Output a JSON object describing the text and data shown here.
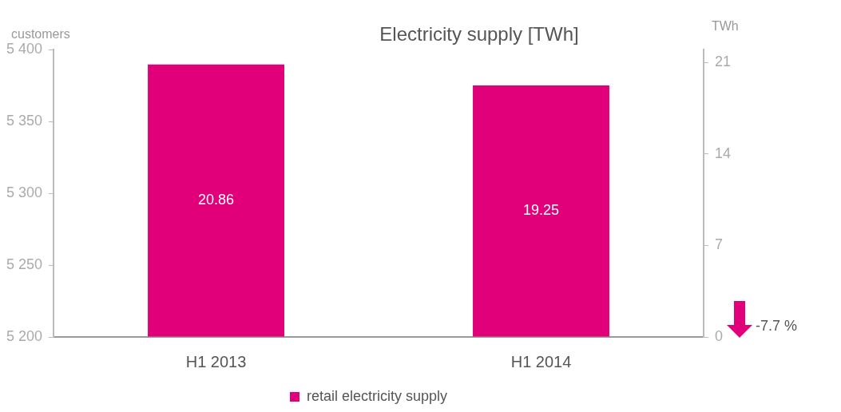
{
  "chart_data": {
    "type": "bar",
    "title": "Electricity supply [TWh]",
    "ylabel": "customers",
    "y2label": "TWh",
    "categories": [
      "H1 2013",
      "H1 2014"
    ],
    "series": [
      {
        "name": "retail electricity supply",
        "color": "#e2007a",
        "values": [
          20.86,
          19.25
        ],
        "axis": "y2"
      }
    ],
    "ylim": [
      5200,
      5400
    ],
    "yticks": [
      {
        "value": 5200,
        "label": "5 200"
      },
      {
        "value": 5250,
        "label": "5 250"
      },
      {
        "value": 5300,
        "label": "5 300"
      },
      {
        "value": 5350,
        "label": "5 350"
      },
      {
        "value": 5400,
        "label": "5 400"
      }
    ],
    "y2lim": [
      0,
      22
    ],
    "y2ticks": [
      0,
      7,
      14,
      21
    ],
    "data_labels": true,
    "grid": false,
    "legend": "bottom",
    "annotations": [
      "-7.7 %"
    ]
  }
}
